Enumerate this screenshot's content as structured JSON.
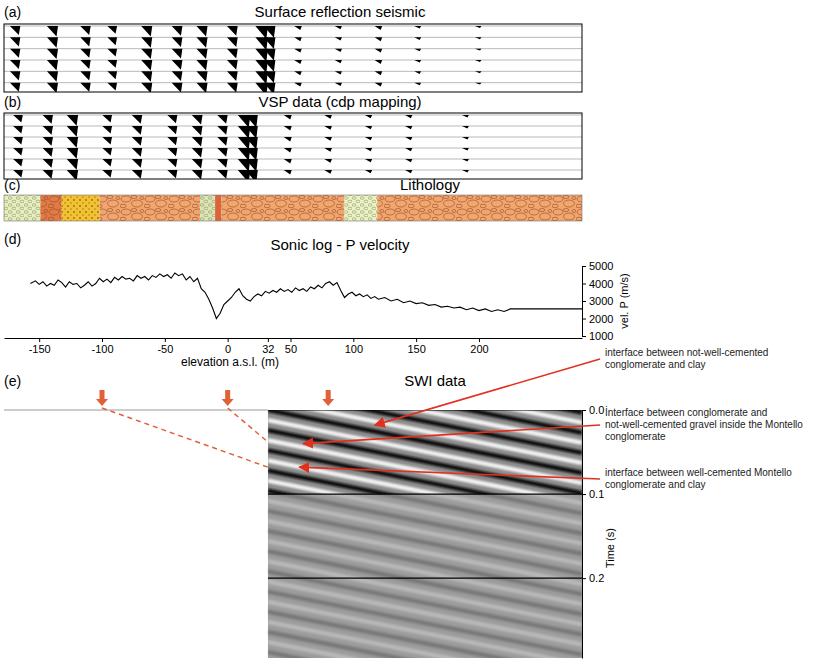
{
  "chart_data": [
    {
      "type": "seismic",
      "label": "(a)",
      "title": "Surface reflection seismic",
      "xlim": [
        -178,
        282
      ],
      "series": [
        {
          "color": "#000000",
          "x": [
            -167,
            -137,
            -111,
            -90,
            -62,
            -38,
            -18,
            6,
            30,
            36,
            57,
            89,
            121,
            152,
            200
          ],
          "values": [
            0.7,
            0.8,
            0.7,
            0.6,
            0.8,
            0.75,
            0.8,
            0.75,
            1.0,
            0.9,
            0.3,
            0.25,
            0.3,
            0.2,
            0.15
          ]
        }
      ]
    },
    {
      "type": "seismic",
      "label": "(b)",
      "title": "VSP data (cdp mapping)",
      "xlim": [
        -178,
        282
      ],
      "series": [
        {
          "color": "#000000",
          "x": [
            -165,
            -141,
            -121,
            -94,
            -70,
            -42,
            -22,
            -2,
            16,
            22,
            49,
            81,
            113,
            145,
            190
          ],
          "values": [
            0.6,
            0.7,
            0.85,
            0.6,
            0.7,
            0.65,
            0.75,
            0.7,
            1.0,
            1.0,
            0.35,
            0.3,
            0.25,
            0.25,
            0.2
          ]
        }
      ]
    },
    {
      "type": "intervals",
      "label": "(c)",
      "title": "Lithology",
      "xlim": [
        -178,
        282
      ],
      "series": [
        {
          "color": "#e9edbf",
          "marker": "sand",
          "values": [
            -178,
            -149
          ]
        },
        {
          "color": "#e27a45",
          "marker": "pebbles",
          "values": [
            -149,
            -132
          ]
        },
        {
          "color": "#f3c233",
          "marker": "dots",
          "values": [
            -132,
            -102
          ]
        },
        {
          "color": "#f2a66e",
          "marker": "pebbles",
          "values": [
            -102,
            -22
          ]
        },
        {
          "color": "#dfe4b5",
          "marker": "sand",
          "values": [
            -22,
            -10
          ]
        },
        {
          "color": "#d9663a",
          "marker": "none",
          "values": [
            -10,
            -5
          ]
        },
        {
          "color": "#f2a66e",
          "marker": "pebbles",
          "values": [
            -5,
            93
          ]
        },
        {
          "color": "#eef0c6",
          "marker": "sand",
          "values": [
            93,
            119
          ]
        },
        {
          "color": "#f2a66e",
          "marker": "pebbles",
          "values": [
            119,
            282
          ]
        }
      ]
    },
    {
      "type": "line",
      "label": "(d)",
      "title": "Sonic log - P velocity",
      "xlabel": "elevation a.s.l. (m)",
      "ylabel": "vel. P (m/s)",
      "xlim": [
        -178,
        282
      ],
      "xticks": [
        -150,
        -100,
        -50,
        0,
        32,
        50,
        100,
        150,
        200
      ],
      "ylim": [
        1000,
        5000
      ],
      "yticks": [
        1000,
        2000,
        3000,
        4000,
        5000
      ],
      "series": [
        {
          "color": "#000000",
          "x": [
            -157,
            -153,
            -150,
            -147,
            -144,
            -141,
            -138,
            -135,
            -132,
            -129,
            -126,
            -123,
            -120,
            -117,
            -114,
            -111,
            -108,
            -105,
            -102,
            -99,
            -96,
            -93,
            -90,
            -87,
            -84,
            -81,
            -78,
            -75,
            -72,
            -69,
            -66,
            -63,
            -60,
            -57,
            -54,
            -51,
            -48,
            -45,
            -42,
            -39,
            -36,
            -33,
            -30,
            -27,
            -24,
            -21,
            -18,
            -15,
            -12,
            -9,
            -6,
            -3,
            0,
            3,
            6,
            9,
            12,
            15,
            18,
            21,
            24,
            27,
            30,
            33,
            36,
            39,
            42,
            45,
            48,
            51,
            54,
            57,
            60,
            63,
            66,
            69,
            72,
            75,
            78,
            81,
            84,
            87,
            90,
            93,
            96,
            99,
            102,
            105,
            108,
            111,
            114,
            117,
            120,
            125,
            130,
            135,
            140,
            145,
            150,
            155,
            160,
            165,
            170,
            175,
            180,
            185,
            190,
            195,
            200,
            205,
            210,
            215,
            220,
            225,
            232,
            282
          ],
          "values": [
            4000,
            4150,
            3950,
            4100,
            3850,
            4000,
            3900,
            4200,
            4050,
            3800,
            4100,
            3950,
            4000,
            3750,
            3900,
            4100,
            3850,
            4000,
            4300,
            4100,
            4250,
            4050,
            4350,
            4200,
            4400,
            4250,
            4300,
            4150,
            4450,
            4300,
            4400,
            4200,
            4450,
            4350,
            4550,
            4400,
            4500,
            4300,
            4600,
            4450,
            4550,
            4200,
            4400,
            4100,
            4300,
            3700,
            3500,
            3100,
            2600,
            2000,
            2300,
            2800,
            3000,
            3200,
            3500,
            3700,
            3300,
            3100,
            3000,
            3250,
            3400,
            3300,
            3550,
            3450,
            3600,
            3500,
            3700,
            3550,
            3650,
            3500,
            3750,
            3600,
            3700,
            3550,
            3800,
            3700,
            3900,
            3750,
            4000,
            4100,
            3900,
            4050,
            3600,
            3200,
            3400,
            3500,
            3300,
            3400,
            3250,
            3350,
            3150,
            3250,
            3100,
            3200,
            3000,
            3100,
            2900,
            3000,
            2850,
            2900,
            2750,
            2800,
            2650,
            2700,
            2600,
            2650,
            2500,
            2600,
            2450,
            2550,
            2400,
            2500,
            2400,
            2550,
            2550,
            2550
          ]
        }
      ]
    },
    {
      "type": "image",
      "label": "(e)",
      "title": "SWI data",
      "ylabel": "Time (s)",
      "xlim": [
        -178,
        282
      ],
      "x": [
        32,
        282
      ],
      "ylim": [
        0,
        0.295
      ],
      "yticks": [
        {
          "value": 0,
          "label": "0.0"
        },
        0.1,
        0.2
      ],
      "grid": true,
      "series": [
        {
          "color": "#111111",
          "time_start": [
            -0.072,
            -0.048,
            -0.024,
            0,
            0.024,
            0.048,
            0.072,
            0.096,
            0.12,
            0.144,
            0.168,
            0.192,
            0.216,
            0.24,
            0.264,
            0.288
          ],
          "time_end": [
            0.003,
            0.027,
            0.051,
            0.075,
            0.099,
            0.123,
            0.147,
            0.171,
            0.195,
            0.219,
            0.243,
            0.267,
            0.291,
            0.315,
            0.339,
            0.363
          ]
        },
        {
          "color": "#f2f2f2",
          "time_start": [
            -0.06,
            -0.036,
            -0.012,
            0.012,
            0.036,
            0.06,
            0.084,
            0.108,
            0.132,
            0.156,
            0.18,
            0.204,
            0.228,
            0.252,
            0.276,
            0.3
          ],
          "time_end": [
            0.015,
            0.039,
            0.063,
            0.087,
            0.111,
            0.135,
            0.159,
            0.183,
            0.207,
            0.231,
            0.255,
            0.279,
            0.303,
            0.327,
            0.351,
            0.375
          ]
        }
      ],
      "markers": {
        "x": [
          -100,
          0,
          80
        ]
      },
      "projections": {
        "x": [
          -100,
          0
        ],
        "time": [
          0.068,
          0.038
        ]
      },
      "annotations": [
        {
          "text": "interface between not-well-cemented conglomerate and clay",
          "x": 117,
          "time": 0.018
        },
        {
          "text": "İnterface between conglomerate and not-well-cemented gravel inside the Montello conglomerate",
          "x": 60,
          "time": 0.04
        },
        {
          "text": "interface between well-cemented Montello conglomerate and clay",
          "x": 57,
          "time": 0.068
        }
      ]
    }
  ]
}
